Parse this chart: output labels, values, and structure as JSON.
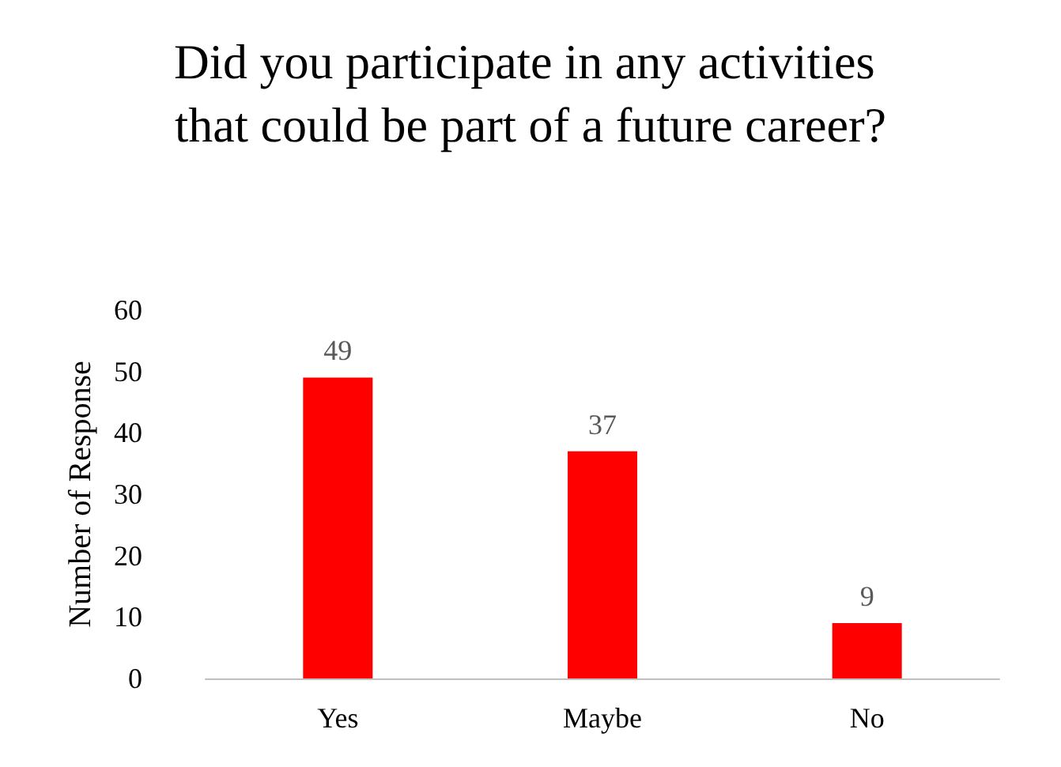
{
  "chart_data": {
    "type": "bar",
    "title": "Did you participate in any activities that could be part of a future career?",
    "ylabel": "Number of Response",
    "categories": [
      "Yes",
      "Maybe",
      "No"
    ],
    "values": [
      49,
      37,
      9
    ],
    "color": "#ff0000",
    "ylim": [
      0,
      60
    ],
    "yticks": [
      0,
      10,
      20,
      30,
      40,
      50,
      60
    ],
    "data_labels": true
  }
}
